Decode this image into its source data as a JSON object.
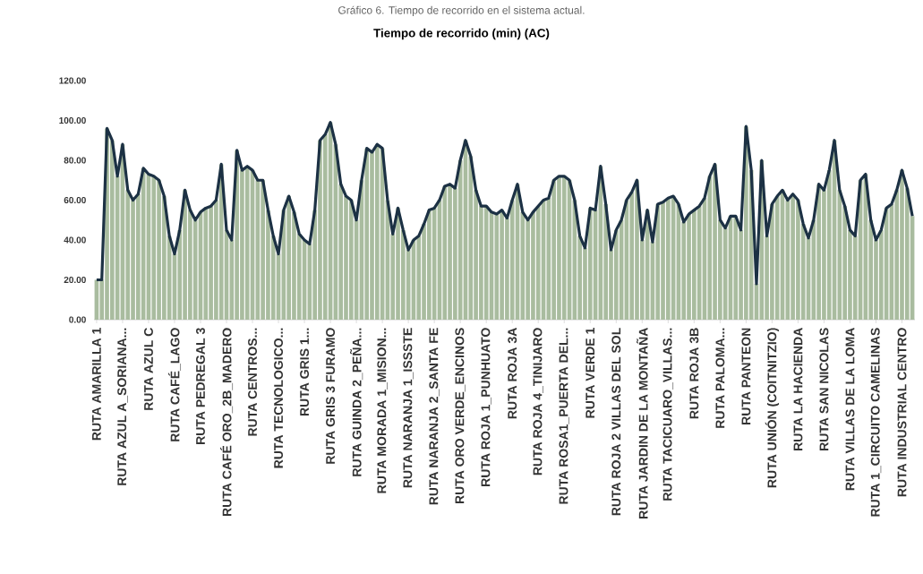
{
  "chart_data": {
    "type": "bar",
    "title": "Tiempo de recorrido (min) (AC)",
    "annotations": [
      "Gráfico 6. Tiempo de recorrido en el sistema actual."
    ],
    "categories": [
      "RUTA AMARILLA 1",
      null,
      null,
      null,
      null,
      "RUTA AZUL A_SORIANA...",
      null,
      null,
      null,
      null,
      "RUTA AZUL C",
      null,
      null,
      null,
      null,
      "RUTA CAFÉ_LAGO",
      null,
      null,
      null,
      null,
      "RUTA PEDREGAL 3",
      null,
      null,
      null,
      null,
      "RUTA CAFÉ ORO_2B_MADERO",
      null,
      null,
      null,
      null,
      "RUTA CENTROS...",
      null,
      null,
      null,
      null,
      "RUTA TECNOLOGICO...",
      null,
      null,
      null,
      null,
      "RUTA GRIS 1...",
      null,
      null,
      null,
      null,
      "RUTA GRIS 3 FURAMO",
      null,
      null,
      null,
      null,
      "RUTA GUINDA 2_PEÑA...",
      null,
      null,
      null,
      null,
      "RUTA MORADA 1_MISION...",
      null,
      null,
      null,
      null,
      "RUTA NARANJA 1_ISSSTE",
      null,
      null,
      null,
      null,
      "RUTA NARANJA 2_SANTA FE",
      null,
      null,
      null,
      null,
      "RUTA ORO VERDE_ENCINOS",
      null,
      null,
      null,
      null,
      "RUTA ROJA 1_PUNHUATO",
      null,
      null,
      null,
      null,
      "RUTA ROJA 3A",
      null,
      null,
      null,
      null,
      "RUTA ROJA 4_TINIJARO",
      null,
      null,
      null,
      null,
      "RUTA ROSA1_PUERTA DEL...",
      null,
      null,
      null,
      null,
      "RUTA VERDE 1",
      null,
      null,
      null,
      null,
      "RUTA ROJA 2 VILLAS DEL SOL",
      null,
      null,
      null,
      null,
      "RUTA JARDIN DE LA MONTAÑA",
      null,
      null,
      null,
      null,
      "RUTA TACICUARO_VILLAS...",
      null,
      null,
      null,
      null,
      "RUTA ROJA 3B",
      null,
      null,
      null,
      null,
      "RUTA PALOMA...",
      null,
      null,
      null,
      null,
      "RUTA PANTEON",
      null,
      null,
      null,
      null,
      "RUTA UNIÓN (COITNITZIO)",
      null,
      null,
      null,
      null,
      "RUTA LA HACIENDA",
      null,
      null,
      null,
      null,
      "RUTA SAN NICOLAS",
      null,
      null,
      null,
      null,
      "RUTA VILLAS DE LA LOMA",
      null,
      null,
      null,
      null,
      "RUTA 1_CIRCUITO CAMELINAS",
      null,
      null,
      null,
      null,
      "RUTA INDUSTRIAL CENTRO",
      null,
      null
    ],
    "series": [
      {
        "color": "#a9bc9f",
        "values": [
          20,
          20,
          96,
          90,
          72,
          88,
          65,
          60,
          63,
          76,
          73,
          72,
          70,
          62,
          42,
          33,
          45,
          65,
          55,
          50,
          54,
          56,
          57,
          60,
          78,
          45,
          40,
          85,
          75,
          77,
          75,
          70,
          70,
          55,
          42,
          33,
          55,
          62,
          54,
          43,
          40,
          38,
          55,
          90,
          93,
          99,
          88,
          68,
          62,
          60,
          50,
          70,
          86,
          84,
          88,
          86,
          60,
          43,
          56,
          45,
          35,
          40,
          42,
          48,
          55,
          56,
          60,
          67,
          68,
          66,
          80,
          90,
          82,
          65,
          57,
          57,
          54,
          53,
          55,
          51,
          60,
          68,
          54,
          50,
          54,
          57,
          60,
          61,
          70,
          72,
          72,
          70,
          60,
          42,
          36,
          56,
          55,
          77,
          58,
          35,
          45,
          50,
          60,
          64,
          70,
          40,
          55,
          39,
          58,
          59,
          61,
          62,
          58,
          49,
          53,
          55,
          57,
          61,
          72,
          78,
          50,
          46,
          52,
          52,
          45,
          97,
          75,
          18,
          80,
          42,
          58,
          62,
          65,
          60,
          63,
          60,
          48,
          41,
          50,
          68,
          65,
          75,
          90,
          65,
          57,
          45,
          42,
          70,
          73,
          50,
          40,
          45,
          56,
          58,
          65,
          75,
          66,
          52
        ]
      },
      {
        "type": "line",
        "color": "#1c3144",
        "values": [
          20,
          20,
          96,
          90,
          72,
          88,
          65,
          60,
          63,
          76,
          73,
          72,
          70,
          62,
          42,
          33,
          45,
          65,
          55,
          50,
          54,
          56,
          57,
          60,
          78,
          45,
          40,
          85,
          75,
          77,
          75,
          70,
          70,
          55,
          42,
          33,
          55,
          62,
          54,
          43,
          40,
          38,
          55,
          90,
          93,
          99,
          88,
          68,
          62,
          60,
          50,
          70,
          86,
          84,
          88,
          86,
          60,
          43,
          56,
          45,
          35,
          40,
          42,
          48,
          55,
          56,
          60,
          67,
          68,
          66,
          80,
          90,
          82,
          65,
          57,
          57,
          54,
          53,
          55,
          51,
          60,
          68,
          54,
          50,
          54,
          57,
          60,
          61,
          70,
          72,
          72,
          70,
          60,
          42,
          36,
          56,
          55,
          77,
          58,
          35,
          45,
          50,
          60,
          64,
          70,
          40,
          55,
          39,
          58,
          59,
          61,
          62,
          58,
          49,
          53,
          55,
          57,
          61,
          72,
          78,
          50,
          46,
          52,
          52,
          45,
          97,
          75,
          18,
          80,
          42,
          58,
          62,
          65,
          60,
          63,
          60,
          48,
          41,
          50,
          68,
          65,
          75,
          90,
          65,
          57,
          45,
          42,
          70,
          73,
          50,
          40,
          45,
          56,
          58,
          65,
          75,
          66,
          52
        ]
      }
    ],
    "ylim": [
      0,
      120
    ],
    "yticks": [
      {
        "value": 0,
        "label": "0.00"
      },
      {
        "value": 20,
        "label": "20.00"
      },
      {
        "value": 40,
        "label": "40.00"
      },
      {
        "value": 60,
        "label": "60.00"
      },
      {
        "value": 80,
        "label": "80.00"
      },
      {
        "value": 100,
        "label": "100.00"
      },
      {
        "value": 120,
        "label": "120.00"
      }
    ]
  }
}
